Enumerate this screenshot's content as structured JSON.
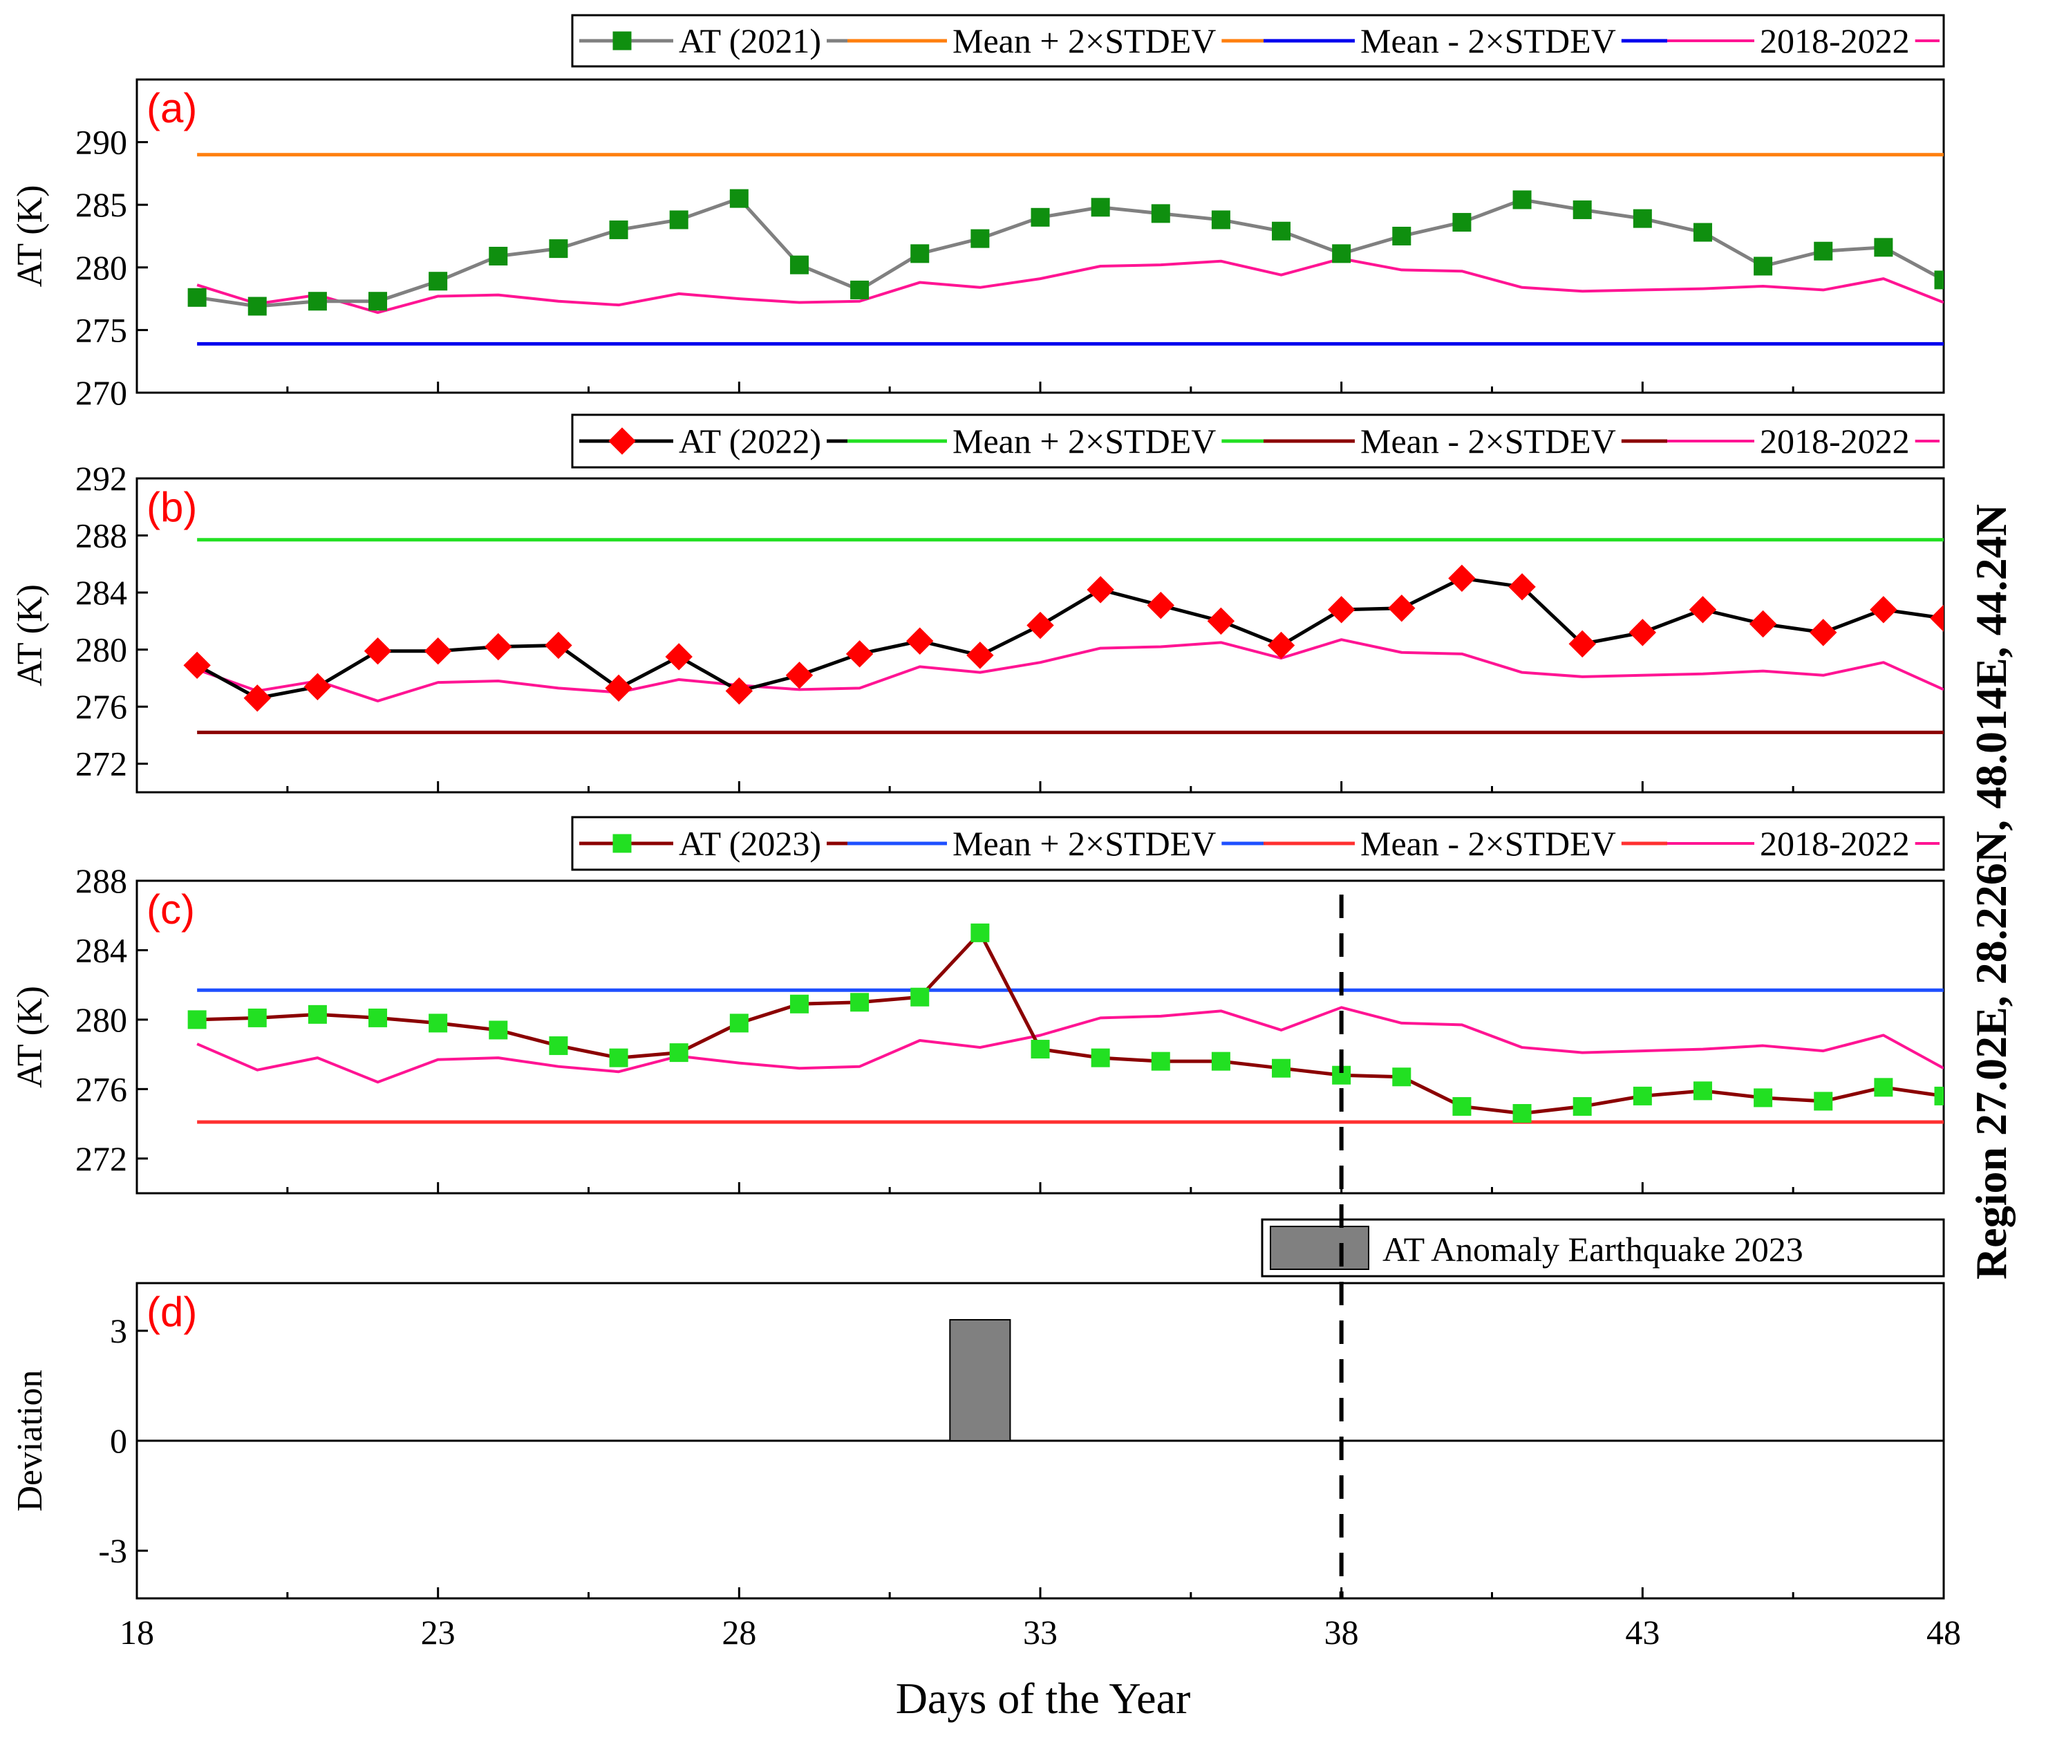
{
  "chart_data": {
    "type": "line",
    "x_axis": {
      "label": "Days of the Year",
      "range": [
        18,
        48
      ],
      "ticks": [
        18,
        23,
        28,
        33,
        38,
        43,
        48
      ],
      "tick_labels": [
        "18",
        "23",
        "28",
        "33",
        "38",
        "43",
        "48"
      ]
    },
    "region_label": "Region 27.02E, 28.226N, 48.014E, 44.24N",
    "event_day": 38,
    "days": [
      19,
      20,
      21,
      22,
      23,
      24,
      25,
      26,
      27,
      28,
      29,
      30,
      31,
      32,
      33,
      34,
      35,
      36,
      37,
      38,
      39,
      40,
      41,
      42,
      43,
      44,
      45,
      46,
      47,
      48
    ],
    "panels": [
      {
        "id": "a",
        "panel_label": "(a)",
        "ylabel": "AT (K)",
        "ylim": [
          270,
          295
        ],
        "yticks": [
          270,
          275,
          280,
          285,
          290
        ],
        "ytick_labels": [
          "270",
          "275",
          "280",
          "285",
          "290"
        ],
        "series": [
          {
            "name": "AT (2021)",
            "kind": "line-marker",
            "color": "#808080",
            "marker": "square",
            "marker_color": "#0f8f0f",
            "values": [
              277.6,
              276.9,
              277.3,
              277.3,
              278.9,
              280.9,
              281.5,
              283.0,
              283.8,
              285.5,
              280.2,
              278.2,
              281.1,
              282.3,
              284.0,
              284.8,
              284.3,
              283.8,
              282.9,
              281.1,
              282.5,
              283.6,
              285.4,
              284.6,
              283.9,
              282.8,
              280.1,
              281.3,
              281.6,
              279.0
            ]
          },
          {
            "name": "Mean + 2×STDEV",
            "kind": "hline",
            "color": "#ff7f0e",
            "value": 289.0
          },
          {
            "name": "Mean - 2×STDEV",
            "kind": "hline",
            "color": "#0000ee",
            "value": 273.9
          },
          {
            "name": "2018-2022",
            "kind": "line",
            "color": "#ff1493",
            "values": [
              278.6,
              277.1,
              277.8,
              276.4,
              277.7,
              277.8,
              277.3,
              277.0,
              277.9,
              277.5,
              277.2,
              277.3,
              278.8,
              278.4,
              279.1,
              280.1,
              280.2,
              280.5,
              279.4,
              280.7,
              279.8,
              279.7,
              278.4,
              278.1,
              278.2,
              278.3,
              278.5,
              278.2,
              279.1,
              277.2
            ]
          }
        ]
      },
      {
        "id": "b",
        "panel_label": "(b)",
        "ylabel": "AT (K)",
        "ylim": [
          270,
          292
        ],
        "yticks": [
          272,
          276,
          280,
          284,
          288,
          292
        ],
        "ytick_labels": [
          "272",
          "276",
          "280",
          "284",
          "288",
          "292"
        ],
        "series": [
          {
            "name": "AT (2022)",
            "kind": "line-marker",
            "color": "#000000",
            "marker": "diamond",
            "marker_color": "#ff0000",
            "values": [
              278.9,
              276.6,
              277.4,
              279.9,
              279.9,
              280.2,
              280.3,
              277.3,
              279.5,
              277.1,
              278.2,
              279.7,
              280.6,
              279.6,
              281.7,
              284.2,
              283.1,
              282.0,
              280.3,
              282.8,
              282.9,
              285.0,
              284.4,
              280.4,
              281.2,
              282.8,
              281.8,
              281.2,
              282.8,
              282.2
            ]
          },
          {
            "name": "Mean + 2×STDEV",
            "kind": "hline",
            "color": "#22e022",
            "value": 287.7
          },
          {
            "name": "Mean - 2×STDEV",
            "kind": "hline",
            "color": "#8b0000",
            "value": 274.2
          },
          {
            "name": "2018-2022",
            "kind": "line",
            "color": "#ff1493",
            "values": [
              278.6,
              277.1,
              277.8,
              276.4,
              277.7,
              277.8,
              277.3,
              277.0,
              277.9,
              277.5,
              277.2,
              277.3,
              278.8,
              278.4,
              279.1,
              280.1,
              280.2,
              280.5,
              279.4,
              280.7,
              279.8,
              279.7,
              278.4,
              278.1,
              278.2,
              278.3,
              278.5,
              278.2,
              279.1,
              277.2
            ]
          }
        ]
      },
      {
        "id": "c",
        "panel_label": "(c)",
        "ylabel": "AT (K)",
        "ylim": [
          270,
          288
        ],
        "yticks": [
          272,
          276,
          280,
          284,
          288
        ],
        "ytick_labels": [
          "272",
          "276",
          "280",
          "284",
          "288"
        ],
        "series": [
          {
            "name": "AT (2023)",
            "kind": "line-marker",
            "color": "#8b0000",
            "marker": "square",
            "marker_color": "#22e022",
            "values": [
              280.0,
              280.1,
              280.3,
              280.1,
              279.8,
              279.4,
              278.5,
              277.8,
              278.1,
              279.8,
              280.9,
              281.0,
              281.3,
              285.0,
              278.3,
              277.8,
              277.6,
              277.6,
              277.2,
              276.8,
              276.7,
              275.0,
              274.6,
              275.0,
              275.6,
              275.9,
              275.5,
              275.3,
              276.1,
              275.6
            ]
          },
          {
            "name": "Mean + 2×STDEV",
            "kind": "hline",
            "color": "#1e4fff",
            "value": 281.7
          },
          {
            "name": "Mean - 2×STDEV",
            "kind": "hline",
            "color": "#ff3030",
            "value": 274.1
          },
          {
            "name": "2018-2022",
            "kind": "line",
            "color": "#ff1493",
            "values": [
              278.6,
              277.1,
              277.8,
              276.4,
              277.7,
              277.8,
              277.3,
              277.0,
              277.9,
              277.5,
              277.2,
              277.3,
              278.8,
              278.4,
              279.1,
              280.1,
              280.2,
              280.5,
              279.4,
              280.7,
              279.8,
              279.7,
              278.4,
              278.1,
              278.2,
              278.3,
              278.5,
              278.2,
              279.1,
              277.2
            ]
          }
        ]
      },
      {
        "id": "d",
        "panel_label": "(d)",
        "ylabel": "Deviation",
        "type": "bar",
        "ylim": [
          -4.3,
          4.3
        ],
        "yticks": [
          -3,
          0,
          3
        ],
        "ytick_labels": [
          "-3",
          "0",
          "3"
        ],
        "legend": "AT Anomaly Earthquake 2023",
        "bar_color": "#808080",
        "bars": [
          {
            "day": 32,
            "value": 3.3
          }
        ]
      }
    ]
  }
}
